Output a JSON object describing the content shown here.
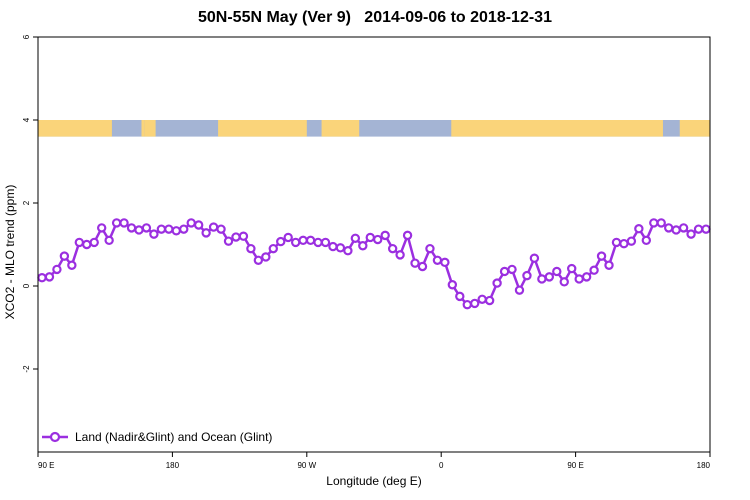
{
  "chart_data": {
    "type": "line",
    "title": "50N-55N May (Ver 9)   2014-09-06 to 2018-12-31",
    "xlabel": "Longitude (deg E)",
    "ylabel": "XCO2 - MLO trend (ppm)",
    "ylim": [
      -4,
      6
    ],
    "xticks": [
      {
        "label": "90 E",
        "pos": 0
      },
      {
        "label": "180",
        "pos": 0.2
      },
      {
        "label": "90 W",
        "pos": 0.4
      },
      {
        "label": "0",
        "pos": 0.6
      },
      {
        "label": "90 E",
        "pos": 0.8
      },
      {
        "label": "180",
        "pos": 1.0
      }
    ],
    "yticks": [
      -2,
      0,
      2,
      4,
      6
    ],
    "series": [
      {
        "name": "Land (Nadir&Glint) and Ocean (Glint)",
        "color": "#9b2fe0",
        "values": [
          0.2,
          0.22,
          0.4,
          0.72,
          0.5,
          1.05,
          1.0,
          1.05,
          1.4,
          1.1,
          1.52,
          1.52,
          1.4,
          1.35,
          1.4,
          1.25,
          1.37,
          1.37,
          1.33,
          1.37,
          1.52,
          1.47,
          1.28,
          1.42,
          1.37,
          1.08,
          1.18,
          1.2,
          0.9,
          0.62,
          0.7,
          0.9,
          1.07,
          1.17,
          1.05,
          1.1,
          1.1,
          1.05,
          1.05,
          0.95,
          0.92,
          0.85,
          1.15,
          0.97,
          1.17,
          1.12,
          1.22,
          0.9,
          0.75,
          1.22,
          0.55,
          0.47,
          0.9,
          0.62,
          0.57,
          0.03,
          -0.25,
          -0.45,
          -0.42,
          -0.32,
          -0.35,
          0.07,
          0.35,
          0.4,
          -0.1,
          0.25,
          0.67,
          0.17,
          0.22,
          0.35,
          0.1,
          0.42,
          0.17,
          0.22,
          0.38,
          0.72,
          0.5,
          1.05,
          1.02,
          1.08,
          1.38,
          1.1,
          1.52,
          1.52,
          1.4,
          1.35,
          1.4,
          1.25,
          1.37,
          1.37
        ]
      }
    ],
    "land_mask": {
      "band_y_range": [
        3.6,
        4.0
      ],
      "ocean_color": "#a4b4d4",
      "land_color": "#fad47a",
      "land_segments": [
        [
          0.0,
          0.11
        ],
        [
          0.154,
          0.158
        ],
        [
          0.158,
          0.175
        ],
        [
          0.268,
          0.4
        ],
        [
          0.422,
          0.478
        ],
        [
          0.615,
          0.93
        ],
        [
          0.955,
          1.0
        ]
      ]
    },
    "legend": {
      "placement": "bottom-left"
    }
  }
}
